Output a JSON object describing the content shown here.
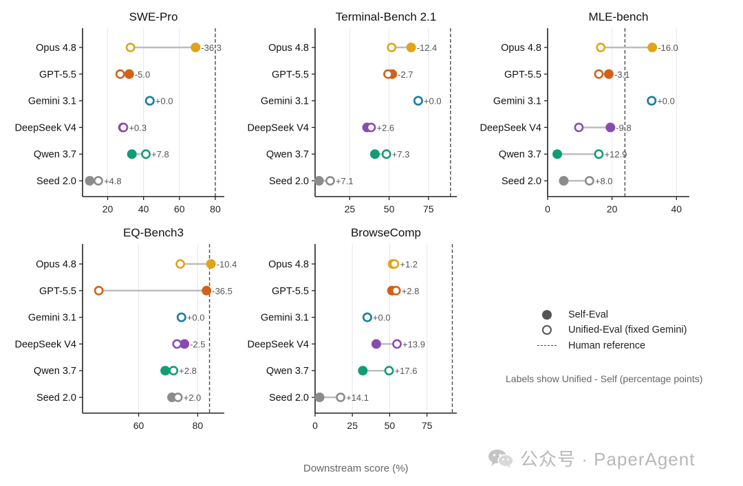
{
  "chart_data": [
    {
      "type": "dumbbell",
      "title": "SWE-Pro",
      "xticks": [
        20,
        40,
        60,
        80
      ],
      "xlim": [
        6,
        85
      ],
      "human_reference": 80,
      "rows": [
        {
          "model": "Opus 4.8",
          "self": 69,
          "unified": 32.7,
          "label": "-36.3"
        },
        {
          "model": "GPT-5.5",
          "self": 32,
          "unified": 27,
          "label": "-5.0"
        },
        {
          "model": "Gemini 3.1",
          "self": 43.5,
          "unified": 43.5,
          "label": "+0.0"
        },
        {
          "model": "DeepSeek V4",
          "self": 28.5,
          "unified": 28.8,
          "label": "+0.3"
        },
        {
          "model": "Qwen 3.7",
          "self": 33.5,
          "unified": 41.3,
          "label": "+7.8"
        },
        {
          "model": "Seed 2.0",
          "self": 10,
          "unified": 14.8,
          "label": "+4.8"
        }
      ]
    },
    {
      "type": "dumbbell",
      "title": "Terminal-Bench 2.1",
      "xticks": [
        25,
        50,
        75
      ],
      "xlim": [
        3,
        93
      ],
      "human_reference": 89,
      "rows": [
        {
          "model": "Opus 4.8",
          "self": 64,
          "unified": 51.6,
          "label": "-12.4"
        },
        {
          "model": "GPT-5.5",
          "self": 52,
          "unified": 49.3,
          "label": "-2.7"
        },
        {
          "model": "Gemini 3.1",
          "self": 68.5,
          "unified": 68.5,
          "label": "+0.0"
        },
        {
          "model": "DeepSeek V4",
          "self": 36,
          "unified": 38.6,
          "label": "+2.6"
        },
        {
          "model": "Qwen 3.7",
          "self": 41,
          "unified": 48.3,
          "label": "+7.3"
        },
        {
          "model": "Seed 2.0",
          "self": 5.5,
          "unified": 12.6,
          "label": "+7.1"
        }
      ]
    },
    {
      "type": "dumbbell",
      "title": "MLE-bench",
      "xticks": [
        0,
        20,
        40
      ],
      "xlim": [
        0,
        44
      ],
      "human_reference": 24,
      "rows": [
        {
          "model": "Opus 4.8",
          "self": 32.5,
          "unified": 16.5,
          "label": "-16.0"
        },
        {
          "model": "GPT-5.5",
          "self": 19,
          "unified": 15.9,
          "label": "-3.1"
        },
        {
          "model": "Gemini 3.1",
          "self": 32.3,
          "unified": 32.3,
          "label": "+0.0"
        },
        {
          "model": "DeepSeek V4",
          "self": 19.5,
          "unified": 9.7,
          "label": "-9.8"
        },
        {
          "model": "Qwen 3.7",
          "self": 3,
          "unified": 15.9,
          "label": "+12.9"
        },
        {
          "model": "Seed 2.0",
          "self": 5,
          "unified": 13,
          "label": "+8.0"
        }
      ]
    },
    {
      "type": "dumbbell",
      "title": "EQ-Bench3",
      "xticks": [
        60,
        80
      ],
      "xlim": [
        41,
        89
      ],
      "human_reference": 84,
      "rows": [
        {
          "model": "Opus 4.8",
          "self": 84.5,
          "unified": 74.1,
          "label": "-10.4"
        },
        {
          "model": "GPT-5.5",
          "self": 83,
          "unified": 46.5,
          "label": "-36.5"
        },
        {
          "model": "Gemini 3.1",
          "self": 74.5,
          "unified": 74.5,
          "label": "+0.0"
        },
        {
          "model": "DeepSeek V4",
          "self": 75.5,
          "unified": 73,
          "label": "-2.5"
        },
        {
          "model": "Qwen 3.7",
          "self": 69,
          "unified": 71.8,
          "label": "+2.8"
        },
        {
          "model": "Seed 2.0",
          "self": 71.3,
          "unified": 73.3,
          "label": "+2.0"
        }
      ]
    },
    {
      "type": "dumbbell",
      "title": "BrowseComp",
      "xticks": [
        0,
        25,
        50,
        75
      ],
      "xlim": [
        0,
        95
      ],
      "human_reference": 92,
      "rows": [
        {
          "model": "Opus 4.8",
          "self": 52,
          "unified": 53.2,
          "label": "+1.2"
        },
        {
          "model": "GPT-5.5",
          "self": 51.5,
          "unified": 54.3,
          "label": "+2.8"
        },
        {
          "model": "Gemini 3.1",
          "self": 35,
          "unified": 35,
          "label": "+0.0"
        },
        {
          "model": "DeepSeek V4",
          "self": 41,
          "unified": 54.9,
          "label": "+13.9"
        },
        {
          "model": "Qwen 3.7",
          "self": 32,
          "unified": 49.6,
          "label": "+17.6"
        },
        {
          "model": "Seed 2.0",
          "self": 3,
          "unified": 17.1,
          "label": "+14.1"
        }
      ]
    }
  ],
  "series_colors": {
    "Opus 4.8": "#e0a516",
    "GPT-5.5": "#d0621a",
    "Gemini 3.1": "#1f7ea8",
    "DeepSeek V4": "#8a4bb0",
    "Qwen 3.7": "#119c77",
    "Seed 2.0": "#8c8c8c"
  },
  "legend": {
    "self_eval": "Self-Eval",
    "unified_eval": "Unified-Eval (fixed Gemini)",
    "human_reference": "Human reference"
  },
  "note": "Labels show Unified - Self (percentage points)",
  "xlabel": "Downstream score (%)",
  "watermark": "公众号 · PaperAgent",
  "watermark_icon": "wechat-icon"
}
